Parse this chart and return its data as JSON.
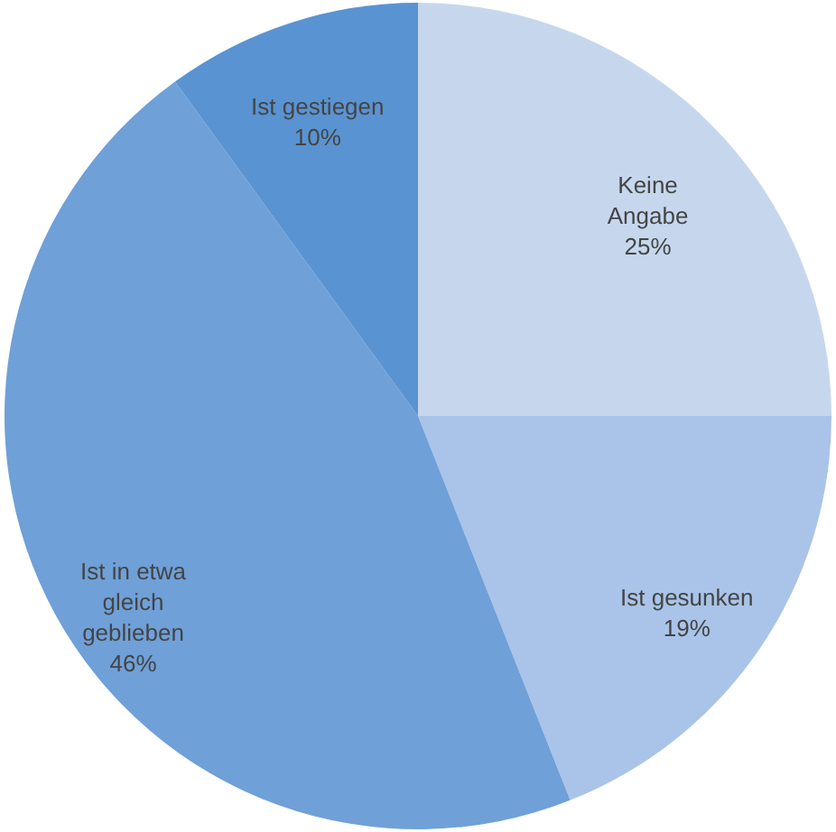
{
  "chart_data": {
    "type": "pie",
    "categories": [
      "Keine Angabe",
      "Ist gesunken",
      "Ist in etwa gleich geblieben",
      "Ist gestiegen"
    ],
    "values": [
      25,
      19,
      46,
      10
    ],
    "value_labels": [
      "25%",
      "19%",
      "46%",
      "10%"
    ],
    "colors": [
      "#c6d7ed",
      "#a9c4e8",
      "#6fa0d8",
      "#5a93d2"
    ]
  }
}
